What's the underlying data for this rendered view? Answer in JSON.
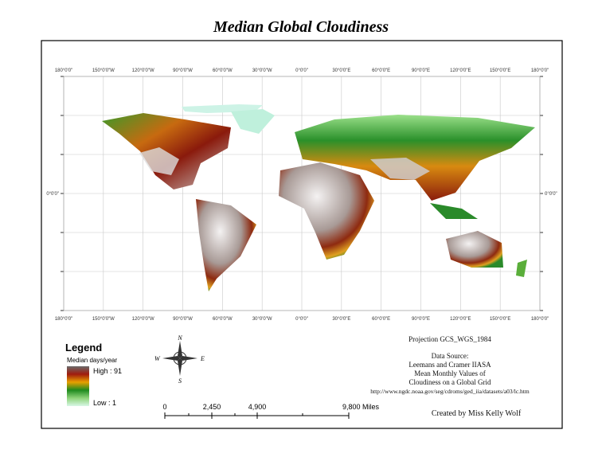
{
  "title": "Median Global Cloudiness",
  "map": {
    "top_labels": [
      "180°0'0\"",
      "150°0'0\"W",
      "120°0'0\"W",
      "90°0'0\"W",
      "60°0'0\"W",
      "30°0'0\"W",
      "0°0'0\"",
      "30°0'0\"E",
      "60°0'0\"E",
      "90°0'0\"E",
      "120°0'0\"E",
      "150°0'0\"E",
      "180°0'0\""
    ],
    "bottom_labels": [
      "180°0'0\"",
      "150°0'0\"W",
      "120°0'0\"W",
      "90°0'0\"W",
      "60°0'0\"W",
      "30°0'0\"W",
      "0°0'0\"",
      "30°0'0\"E",
      "60°0'0\"E",
      "90°0'0\"E",
      "120°0'0\"E",
      "150°0'0\"E",
      "180°0'0\""
    ],
    "left_label": "0°0'0\"",
    "right_label": "0°0'0\""
  },
  "legend": {
    "title": "Legend",
    "subtitle": "Median days/year",
    "high": "High : 91",
    "low": "Low : 1"
  },
  "compass": {
    "n": "N",
    "e": "E",
    "s": "S",
    "w": "W"
  },
  "scale_bar": {
    "labels": [
      "0",
      "2,450",
      "4,900",
      "9,800 Miles"
    ]
  },
  "info": {
    "projection": "Projection GCS_WGS_1984",
    "source": [
      "Data Source:",
      "Leemans and Cramer IIASA",
      "Mean Monthly Values of",
      "Cloudiness on a Global Grid",
      "http://www.ngdc.noaa.gov/seg/cdroms/ged_iia/datasets/a03/lc.htm"
    ],
    "credit": "Created by Miss Kelly Wolf"
  }
}
